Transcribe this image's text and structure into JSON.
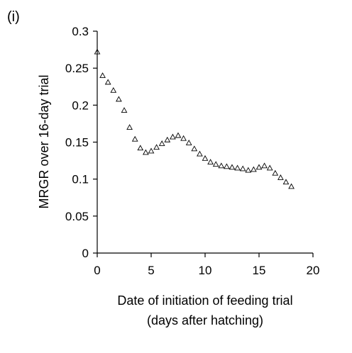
{
  "chart_data": {
    "type": "scatter",
    "panel_label": "(i)",
    "xlabel_line1": "Date of initiation of feeding trial",
    "xlabel_line2": "(days after hatching)",
    "ylabel": "MRGR over 16-day trial",
    "xlim": [
      0,
      20
    ],
    "ylim": [
      0,
      0.3
    ],
    "xticks": [
      0,
      5,
      10,
      15,
      20
    ],
    "xtick_labels": [
      "0",
      "5",
      "10",
      "15",
      "20"
    ],
    "yticks": [
      0,
      0.05,
      0.1,
      0.15,
      0.2,
      0.25,
      0.3
    ],
    "ytick_labels": [
      "0",
      "0.05",
      "0.1",
      "0.15",
      "0.2",
      "0.25",
      "0.3"
    ],
    "grid": false,
    "marker": "triangle-open",
    "marker_color": "#000000",
    "x": [
      0.0,
      0.5,
      1.0,
      1.5,
      2.0,
      2.5,
      3.0,
      3.5,
      4.0,
      4.5,
      5.0,
      5.5,
      6.0,
      6.5,
      7.0,
      7.5,
      8.0,
      8.5,
      9.0,
      9.5,
      10.0,
      10.5,
      11.0,
      11.5,
      12.0,
      12.5,
      13.0,
      13.5,
      14.0,
      14.5,
      15.0,
      15.5,
      16.0,
      16.5,
      17.0,
      17.5,
      18.0
    ],
    "y": [
      0.272,
      0.24,
      0.231,
      0.22,
      0.208,
      0.193,
      0.17,
      0.154,
      0.142,
      0.136,
      0.138,
      0.143,
      0.148,
      0.153,
      0.157,
      0.159,
      0.155,
      0.149,
      0.141,
      0.134,
      0.128,
      0.123,
      0.12,
      0.118,
      0.117,
      0.116,
      0.115,
      0.114,
      0.112,
      0.113,
      0.116,
      0.118,
      0.115,
      0.108,
      0.102,
      0.096,
      0.09
    ]
  }
}
